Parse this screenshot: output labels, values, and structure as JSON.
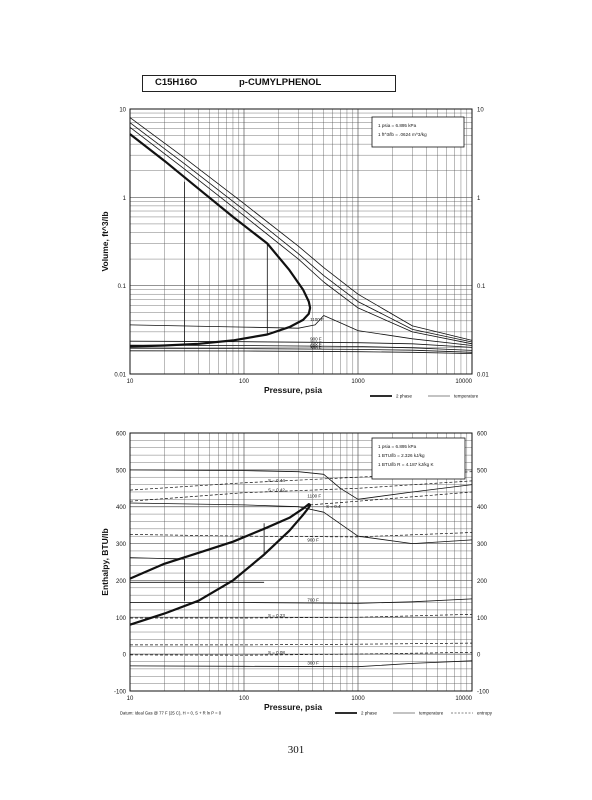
{
  "header": {
    "formula": "C15H16O",
    "compound": "p-CUMYLPHENOL"
  },
  "page_number": "301",
  "chart_data": [
    {
      "type": "line",
      "xscale": "log",
      "yscale": "log",
      "xlim": [
        10,
        10000
      ],
      "ylim": [
        0.01,
        10
      ],
      "xlabel": "Pressure,  psia",
      "ylabel": "Volume, ft^3/lb",
      "x_ticks": [
        "10",
        "100",
        "1000",
        "10000"
      ],
      "y_ticks": [
        "0.01",
        "0.1",
        "1",
        "10"
      ],
      "y_ticks_right": [
        "0.01",
        "0.1",
        "1",
        "10"
      ],
      "grid": true,
      "conversions": [
        "1 psia = 6.895 kPa",
        "1 ft^3/lb = .0624 m^3/kg"
      ],
      "legend": [
        "2 phase",
        "temperature"
      ],
      "legend_placement": "bottom-right",
      "series": [
        {
          "kind": "dome",
          "x": [
            10,
            20,
            40,
            80,
            160,
            250,
            330,
            370,
            380,
            370,
            330,
            250,
            160,
            80,
            40,
            20,
            10
          ],
          "y": [
            5.2,
            2.6,
            1.25,
            0.6,
            0.3,
            0.15,
            0.09,
            0.066,
            0.056,
            0.048,
            0.041,
            0.034,
            0.028,
            0.024,
            0.022,
            0.021,
            0.0205
          ]
        },
        {
          "kind": "isotherm",
          "label": "",
          "x": [
            10,
            30,
            100,
            300,
            500,
            1000,
            3000,
            10000
          ],
          "y": [
            8.0,
            2.8,
            0.85,
            0.28,
            0.16,
            0.08,
            0.035,
            0.024
          ]
        },
        {
          "kind": "isotherm",
          "label": "",
          "x": [
            10,
            30,
            100,
            300,
            500,
            1000,
            3000,
            10000
          ],
          "y": [
            7.0,
            2.4,
            0.72,
            0.23,
            0.13,
            0.066,
            0.032,
            0.023
          ]
        },
        {
          "kind": "isotherm",
          "label": "",
          "x": [
            10,
            30,
            100,
            300,
            500,
            1000,
            3000,
            10000
          ],
          "y": [
            6.2,
            2.1,
            0.62,
            0.2,
            0.11,
            0.056,
            0.03,
            0.022
          ]
        },
        {
          "kind": "isotherm",
          "label": "1100 F",
          "x": [
            10,
            100,
            300,
            420,
            500,
            700,
            1000,
            3000,
            10000
          ],
          "y": [
            0.036,
            0.034,
            0.033,
            0.036,
            0.046,
            0.038,
            0.031,
            0.025,
            0.021
          ]
        },
        {
          "kind": "isotherm",
          "label": "900 F",
          "x": [
            10,
            100,
            1000,
            3000,
            10000
          ],
          "y": [
            0.0235,
            0.0232,
            0.0226,
            0.022,
            0.02
          ]
        },
        {
          "kind": "isotherm",
          "label": "700 F",
          "x": [
            10,
            100,
            1000,
            3000,
            10000
          ],
          "y": [
            0.0212,
            0.021,
            0.0205,
            0.0198,
            0.0185
          ]
        },
        {
          "kind": "isotherm",
          "label": "500 F",
          "x": [
            10,
            100,
            1000,
            3000,
            10000
          ],
          "y": [
            0.0196,
            0.0194,
            0.019,
            0.0186,
            0.0176
          ]
        },
        {
          "kind": "isotherm",
          "label": "300 F",
          "x": [
            10,
            100,
            1000,
            3000,
            10000
          ],
          "y": [
            0.0183,
            0.0182,
            0.0179,
            0.0176,
            0.017
          ]
        },
        {
          "kind": "isotherm",
          "label": "",
          "x": [
            30,
            30
          ],
          "y": [
            1.5,
            0.0218
          ]
        },
        {
          "kind": "isotherm",
          "label": "",
          "x": [
            160,
            160
          ],
          "y": [
            0.3,
            0.028
          ]
        }
      ]
    },
    {
      "type": "line",
      "xscale": "log",
      "xlim": [
        10,
        10000
      ],
      "ylim": [
        -100,
        600
      ],
      "xlabel": "Pressure,  psia",
      "ylabel": "Enthalpy, BTU/lb",
      "x_ticks": [
        "10",
        "100",
        "1000",
        "10000"
      ],
      "y_ticks": [
        "-100",
        "0",
        "100",
        "200",
        "300",
        "400",
        "500",
        "600"
      ],
      "y_ticks_right": [
        "-100",
        "0",
        "100",
        "200",
        "300",
        "400",
        "500",
        "600"
      ],
      "grid": true,
      "conversions": [
        "1 psia = 6.895 kPa",
        "1 BTU/lb = 2.326 kJ/kg",
        "1 BTU/lb R = 4.187 kJ/kg K"
      ],
      "legend": [
        "2 phase",
        "temperature",
        "entropy"
      ],
      "legend_placement": "bottom-right",
      "footnote": "Datum: Ideal Gas @ 77 F (25 C), H = 0, S + R ln P = 0",
      "series": [
        {
          "kind": "dome",
          "x": [
            10,
            20,
            40,
            80,
            150,
            250,
            330,
            370,
            380,
            370,
            330,
            250,
            150,
            80,
            40,
            20,
            10
          ],
          "y": [
            205,
            245,
            275,
            305,
            340,
            370,
            395,
            407,
            405,
            398,
            378,
            335,
            270,
            200,
            145,
            110,
            80
          ]
        },
        {
          "kind": "isotherm",
          "label": "1100 F",
          "x": [
            10,
            100,
            300,
            500,
            700,
            1000,
            3000,
            10000
          ],
          "y": [
            500,
            498,
            495,
            488,
            450,
            420,
            440,
            460
          ]
        },
        {
          "kind": "isotherm",
          "label": "900 F",
          "x": [
            10,
            100,
            300,
            500,
            1000,
            3000,
            10000
          ],
          "y": [
            410,
            405,
            400,
            385,
            320,
            300,
            310
          ]
        },
        {
          "kind": "isotherm",
          "label": "700 F",
          "x": [
            10,
            100,
            1000,
            3000,
            10000
          ],
          "y": [
            140,
            140,
            138,
            142,
            150
          ]
        },
        {
          "kind": "isotherm",
          "label": "300 F",
          "x": [
            10,
            100,
            1000,
            3000,
            10000
          ],
          "y": [
            -32,
            -33,
            -34,
            -25,
            -18
          ]
        },
        {
          "kind": "isotherm",
          "label": "",
          "x": [
            10,
            30
          ],
          "y": [
            262,
            258
          ]
        },
        {
          "kind": "isotherm",
          "label": "",
          "x": [
            10,
            150
          ],
          "y": [
            195,
            195
          ]
        },
        {
          "kind": "isotherm",
          "label": "",
          "x": [
            30,
            30
          ],
          "y": [
            258,
            145
          ]
        },
        {
          "kind": "isotherm",
          "label": "",
          "x": [
            150,
            150
          ],
          "y": [
            355,
            272
          ]
        },
        {
          "kind": "entropy",
          "label": "S = 0.44",
          "x": [
            10,
            100,
            1000,
            10000
          ],
          "y": [
            445,
            465,
            480,
            495
          ]
        },
        {
          "kind": "entropy",
          "label": "S = 0.42",
          "x": [
            10,
            100,
            1000,
            10000
          ],
          "y": [
            415,
            438,
            450,
            470
          ]
        },
        {
          "kind": "entropy",
          "label": "S = 0.4",
          "x": [
            380,
            1000,
            10000
          ],
          "y": [
            405,
            415,
            440
          ]
        },
        {
          "kind": "entropy",
          "label": "",
          "x": [
            10,
            100,
            1000,
            10000
          ],
          "y": [
            325,
            320,
            318,
            330
          ]
        },
        {
          "kind": "entropy",
          "label": "S = 0.23",
          "x": [
            10,
            100,
            1000,
            10000
          ],
          "y": [
            98,
            98,
            100,
            108
          ]
        },
        {
          "kind": "entropy",
          "label": "",
          "x": [
            10,
            100,
            1000,
            10000
          ],
          "y": [
            25,
            25,
            27,
            30
          ]
        },
        {
          "kind": "entropy",
          "label": "S = 0.08",
          "x": [
            10,
            100,
            1000,
            10000
          ],
          "y": [
            -2,
            -3,
            0,
            5
          ]
        }
      ]
    }
  ]
}
